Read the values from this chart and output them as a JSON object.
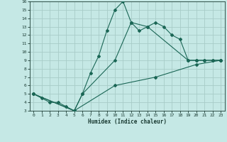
{
  "xlabel": "Humidex (Indice chaleur)",
  "ylabel": "",
  "bg_color": "#c5e8e5",
  "grid_color": "#a8ccc8",
  "line_color": "#1a6655",
  "xlim": [
    -0.5,
    23.5
  ],
  "ylim": [
    3,
    16
  ],
  "xticks": [
    0,
    1,
    2,
    3,
    4,
    5,
    6,
    7,
    8,
    9,
    10,
    11,
    12,
    13,
    14,
    15,
    16,
    17,
    18,
    19,
    20,
    21,
    22,
    23
  ],
  "yticks": [
    3,
    4,
    5,
    6,
    7,
    8,
    9,
    10,
    11,
    12,
    13,
    14,
    15,
    16
  ],
  "line1_x": [
    0,
    1,
    2,
    3,
    4,
    5,
    6,
    7,
    8,
    9,
    10,
    11,
    12,
    13,
    14,
    15,
    16,
    17,
    18,
    19,
    20,
    21,
    22,
    23
  ],
  "line1_y": [
    5,
    4.5,
    4,
    4,
    3.5,
    3,
    5,
    7.5,
    9.5,
    12.5,
    15,
    16,
    13.5,
    12.5,
    13,
    13.5,
    13,
    12,
    11.5,
    9,
    9,
    9,
    9,
    9
  ],
  "line2_x": [
    0,
    5,
    6,
    10,
    12,
    14,
    19,
    20,
    21,
    22,
    23
  ],
  "line2_y": [
    5,
    3,
    5,
    9,
    13.5,
    13,
    9,
    9,
    9,
    9,
    9
  ],
  "line3_x": [
    0,
    5,
    10,
    15,
    20,
    23
  ],
  "line3_y": [
    5,
    3,
    6,
    7,
    8.5,
    9
  ]
}
